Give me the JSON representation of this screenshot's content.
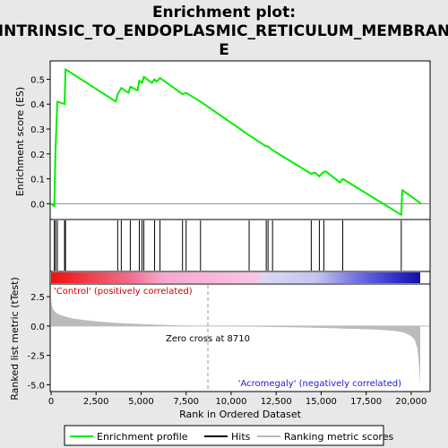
{
  "title_line1": "Enrichment plot:",
  "title_line2": "INTRINSIC_TO_ENDOPLASMIC_RETICULUM_MEMBRAN",
  "title_line3": "E",
  "colors": {
    "background": "#e8e8e8",
    "es_line": "#00ee00",
    "hits": "#000000",
    "metric_fill": "#bbbbbb",
    "zero_cross": "#999999",
    "pos_label": "#cc0000",
    "neg_label": "#1a1acc"
  },
  "chart_data": [
    {
      "type": "line",
      "name": "enrichment-profile",
      "ylabel": "Enrichment score (ES)",
      "xlim": [
        0,
        21000
      ],
      "ylim": [
        -0.06,
        0.57
      ],
      "yticks": [
        0.0,
        0.1,
        0.2,
        0.3,
        0.4,
        0.5
      ],
      "ytick_labels": [
        "0.0",
        "0.1",
        "0.2",
        "0.3",
        "0.4",
        "0.5"
      ],
      "x": [
        0,
        180,
        250,
        350,
        750,
        800,
        3600,
        3700,
        3900,
        4300,
        4400,
        4800,
        4900,
        5050,
        5150,
        5600,
        5750,
        5850,
        6050,
        7300,
        7500,
        8300,
        11000,
        11950,
        12050,
        12300,
        14450,
        14650,
        14900,
        15100,
        15250,
        16050,
        16200,
        19450,
        19500,
        20550
      ],
      "y": [
        0.0,
        -0.01,
        0.22,
        0.41,
        0.4,
        0.54,
        0.41,
        0.44,
        0.465,
        0.445,
        0.47,
        0.455,
        0.495,
        0.485,
        0.51,
        0.485,
        0.5,
        0.49,
        0.505,
        0.44,
        0.445,
        0.41,
        0.275,
        0.23,
        0.23,
        0.215,
        0.12,
        0.125,
        0.11,
        0.125,
        0.13,
        0.085,
        0.1,
        -0.045,
        0.055,
        0.0
      ]
    },
    {
      "type": "hits",
      "name": "gene-hits",
      "positions": [
        180,
        250,
        350,
        750,
        800,
        3700,
        3900,
        4400,
        4900,
        5050,
        5150,
        5750,
        6050,
        7300,
        7500,
        8300,
        11000,
        11950,
        12050,
        12300,
        14450,
        14900,
        15150,
        16200,
        19450
      ]
    },
    {
      "type": "area",
      "name": "ranked-list-metric",
      "ylabel": "Ranked list metric (tTest)",
      "xlabel": "Rank in Ordered Dataset",
      "xlim": [
        0,
        21000
      ],
      "ylim": [
        -5.5,
        3.5
      ],
      "yticks": [
        2.5,
        0.0,
        -2.5,
        -5.0
      ],
      "ytick_labels": [
        "2.5",
        "0.0",
        "-2.5",
        "-5.0"
      ],
      "xticks": [
        0,
        2500,
        5000,
        7500,
        10000,
        12500,
        15000,
        17500,
        20000
      ],
      "xtick_labels": [
        "0",
        "2,500",
        "5,000",
        "7,500",
        "10,000",
        "12,500",
        "15,000",
        "17,500",
        "20,000"
      ],
      "x": [
        0,
        50,
        150,
        300,
        500,
        800,
        1200,
        1800,
        2500,
        3500,
        5000,
        7000,
        8710,
        11000,
        14000,
        16000,
        18000,
        19000,
        19600,
        20000,
        20200,
        20350,
        20450,
        20500
      ],
      "y": [
        2.3,
        1.7,
        1.35,
        1.1,
        0.95,
        0.8,
        0.65,
        0.52,
        0.4,
        0.28,
        0.16,
        0.06,
        0.0,
        -0.05,
        -0.12,
        -0.2,
        -0.3,
        -0.4,
        -0.55,
        -0.85,
        -1.2,
        -1.9,
        -3.5,
        -5.2
      ],
      "zero_cross_rank": 8710,
      "zero_cross_label": "Zero cross at 8710",
      "pos_label": "'Control' (positively correlated)",
      "neg_label": "'Acromegaly' (negatively correlated)"
    }
  ],
  "legend": [
    {
      "label": "Enrichment profile",
      "kind": "line",
      "color": "#00ee00"
    },
    {
      "label": "Hits",
      "kind": "line",
      "color": "#000000"
    },
    {
      "label": "Ranking metric scores",
      "kind": "line",
      "color": "#bbbbbb"
    }
  ]
}
